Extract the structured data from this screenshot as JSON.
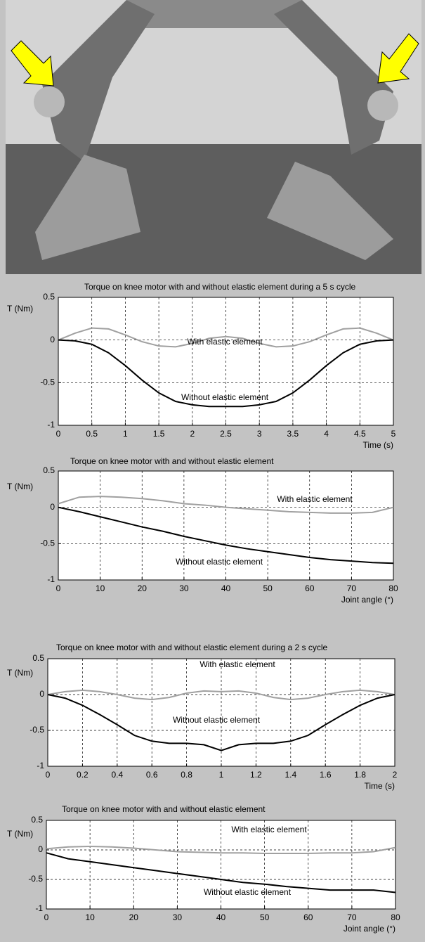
{
  "chart_data": [
    {
      "type": "line",
      "title": "Torque on knee motor with and without elastic element during a 5 s cycle",
      "x_label": "Time (s)",
      "y_label": "T (Nm)",
      "x": [
        0,
        0.25,
        0.5,
        0.75,
        1,
        1.25,
        1.5,
        1.75,
        2,
        2.25,
        2.5,
        2.75,
        3,
        3.25,
        3.5,
        3.75,
        4,
        4.25,
        4.5,
        4.75,
        5
      ],
      "series": [
        {
          "name": "With elastic element",
          "color": "#a0a0a0",
          "values": [
            0,
            0.08,
            0.14,
            0.13,
            0.06,
            -0.02,
            -0.07,
            -0.08,
            -0.04,
            0.02,
            0.04,
            0.02,
            -0.04,
            -0.08,
            -0.07,
            -0.02,
            0.06,
            0.13,
            0.14,
            0.08,
            0
          ]
        },
        {
          "name": "Without elastic element",
          "color": "#000000",
          "values": [
            0,
            -0.01,
            -0.05,
            -0.15,
            -0.3,
            -0.47,
            -0.62,
            -0.72,
            -0.76,
            -0.78,
            -0.78,
            -0.78,
            -0.76,
            -0.72,
            -0.62,
            -0.47,
            -0.3,
            -0.15,
            -0.05,
            -0.01,
            0
          ]
        }
      ],
      "xlim": [
        0,
        5
      ],
      "ylim": [
        -1,
        0.5
      ],
      "xticks": [
        0,
        0.5,
        1,
        1.5,
        2,
        2.5,
        3,
        3.5,
        4,
        4.5,
        5
      ],
      "yticks": [
        0.5,
        0,
        -0.5,
        -1
      ],
      "grid": true
    },
    {
      "type": "line",
      "title": "Torque on knee motor with and without elastic element",
      "x_label": "Joint angle (°)",
      "y_label": "T (Nm)",
      "x": [
        0,
        5,
        10,
        15,
        20,
        25,
        30,
        35,
        40,
        45,
        50,
        55,
        60,
        65,
        70,
        75,
        80
      ],
      "series": [
        {
          "name": "With elastic element",
          "color": "#a0a0a0",
          "values": [
            0.05,
            0.14,
            0.15,
            0.14,
            0.12,
            0.09,
            0.05,
            0.03,
            0,
            -0.02,
            -0.04,
            -0.06,
            -0.07,
            -0.08,
            -0.08,
            -0.07,
            0
          ]
        },
        {
          "name": "Without elastic element",
          "color": "#000000",
          "values": [
            0,
            -0.06,
            -0.13,
            -0.2,
            -0.27,
            -0.33,
            -0.4,
            -0.46,
            -0.52,
            -0.57,
            -0.61,
            -0.65,
            -0.69,
            -0.72,
            -0.74,
            -0.76,
            -0.77
          ]
        }
      ],
      "xlim": [
        0,
        80
      ],
      "ylim": [
        -1,
        0.5
      ],
      "xticks": [
        0,
        10,
        20,
        30,
        40,
        50,
        60,
        70,
        80
      ],
      "yticks": [
        0.5,
        0,
        -0.5,
        -1
      ],
      "grid": true
    },
    {
      "type": "line",
      "title": "Torque on knee motor with and without elastic element during a 2 s cycle",
      "x_label": "Time (s)",
      "y_label": "T (Nm)",
      "x": [
        0,
        0.1,
        0.2,
        0.3,
        0.4,
        0.5,
        0.6,
        0.7,
        0.8,
        0.9,
        1,
        1.1,
        1.2,
        1.3,
        1.4,
        1.5,
        1.6,
        1.7,
        1.8,
        1.9,
        2
      ],
      "series": [
        {
          "name": "With elastic element",
          "color": "#a0a0a0",
          "values": [
            0,
            0.04,
            0.06,
            0.04,
            0,
            -0.05,
            -0.07,
            -0.04,
            0.02,
            0.05,
            0.04,
            0.05,
            0.02,
            -0.04,
            -0.07,
            -0.05,
            0,
            0.04,
            0.06,
            0.04,
            0
          ]
        },
        {
          "name": "Without elastic element",
          "color": "#000000",
          "values": [
            0,
            -0.05,
            -0.15,
            -0.28,
            -0.42,
            -0.57,
            -0.65,
            -0.68,
            -0.68,
            -0.7,
            -0.78,
            -0.7,
            -0.68,
            -0.68,
            -0.65,
            -0.57,
            -0.42,
            -0.28,
            -0.15,
            -0.05,
            0
          ]
        }
      ],
      "xlim": [
        0,
        2
      ],
      "ylim": [
        -1,
        0.5
      ],
      "xticks": [
        0,
        0.2,
        0.4,
        0.6,
        0.8,
        1,
        1.2,
        1.4,
        1.6,
        1.8,
        2
      ],
      "yticks": [
        0.5,
        0,
        -0.5,
        -1
      ],
      "grid": true
    },
    {
      "type": "line",
      "title": "Torque on knee motor with and without elastic element",
      "x_label": "Joint angle (°)",
      "y_label": "T (Nm)",
      "x": [
        0,
        5,
        10,
        15,
        20,
        25,
        30,
        35,
        40,
        45,
        50,
        55,
        60,
        65,
        70,
        75,
        80
      ],
      "series": [
        {
          "name": "With elastic element",
          "color": "#a0a0a0",
          "values": [
            0.02,
            0.05,
            0.06,
            0.05,
            0.03,
            0,
            -0.03,
            -0.04,
            -0.05,
            -0.05,
            -0.06,
            -0.06,
            -0.06,
            -0.05,
            -0.05,
            -0.03,
            0.04
          ]
        },
        {
          "name": "Without elastic element",
          "color": "#000000",
          "values": [
            -0.05,
            -0.15,
            -0.2,
            -0.25,
            -0.3,
            -0.35,
            -0.4,
            -0.45,
            -0.5,
            -0.55,
            -0.58,
            -0.62,
            -0.65,
            -0.68,
            -0.68,
            -0.68,
            -0.72
          ]
        }
      ],
      "xlim": [
        0,
        80
      ],
      "ylim": [
        -1,
        0.5
      ],
      "xticks": [
        0,
        10,
        20,
        30,
        40,
        50,
        60,
        70,
        80
      ],
      "yticks": [
        0.5,
        0,
        -0.5,
        -1
      ],
      "grid": true
    }
  ]
}
